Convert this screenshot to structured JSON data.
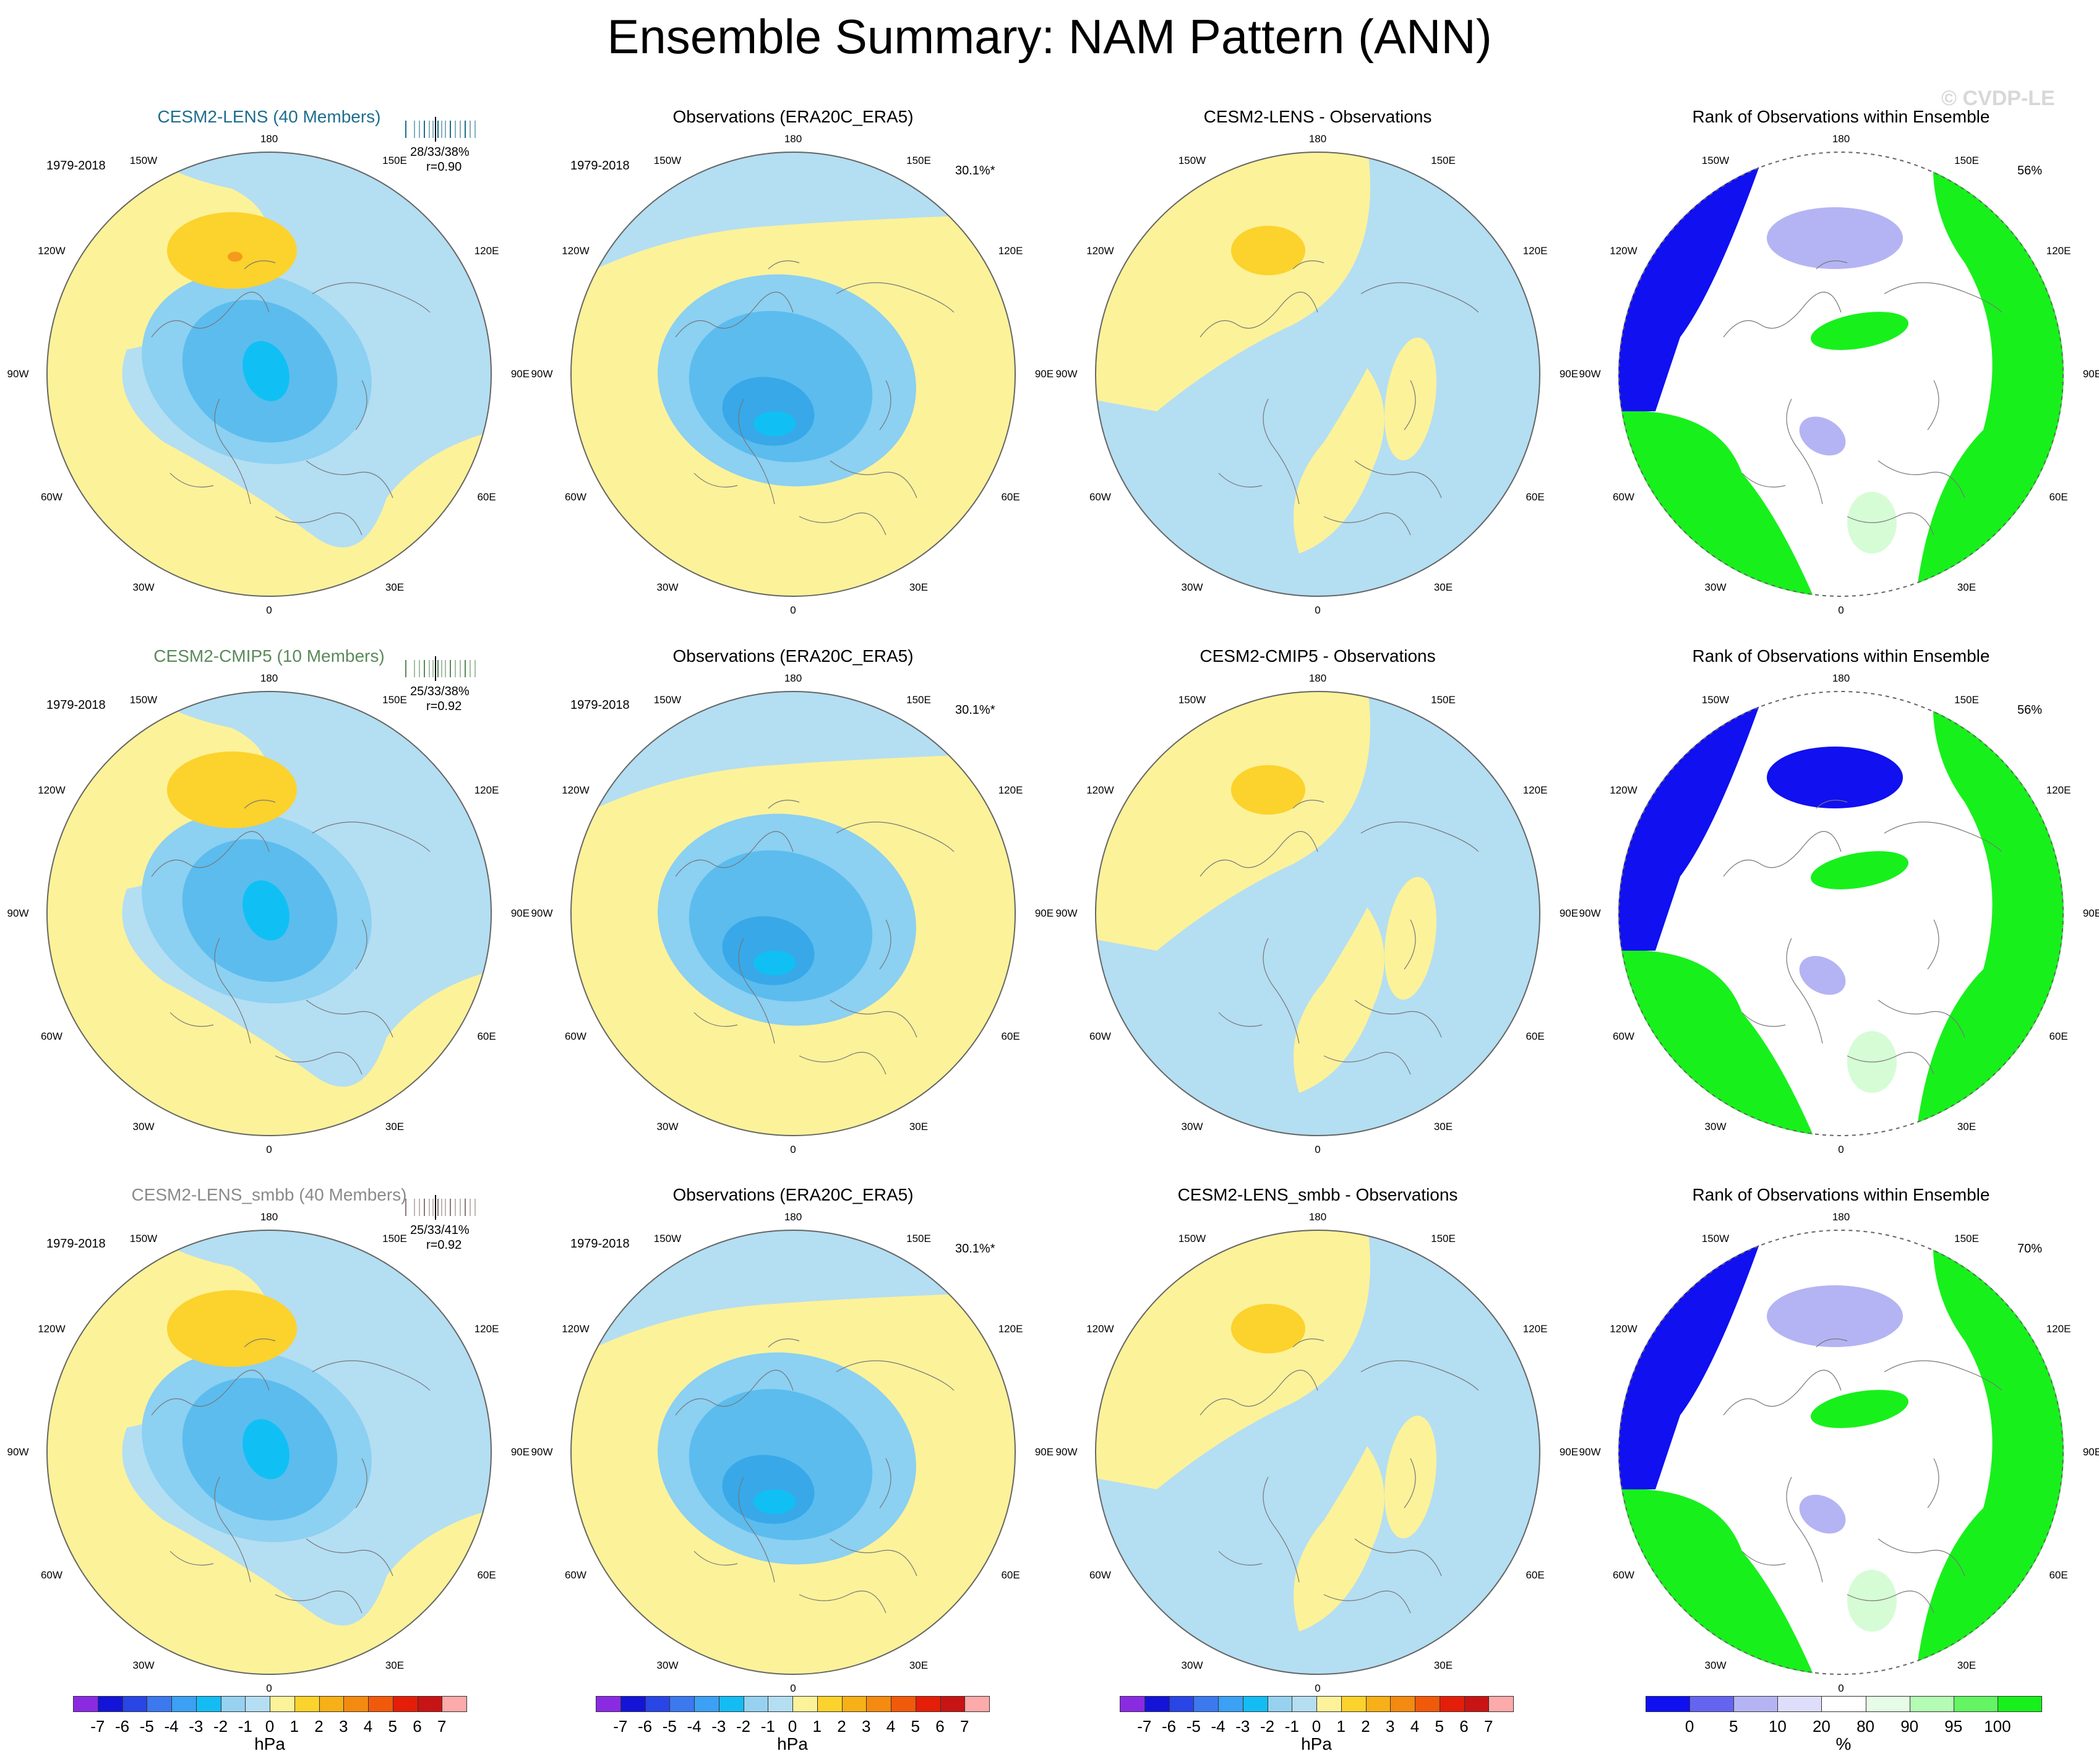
{
  "title": "Ensemble Summary: NAM Pattern (ANN)",
  "watermark": "© CVDP-LE",
  "lon_labels": [
    "180",
    "150E",
    "120E",
    "90E",
    "60E",
    "30E",
    "0",
    "30W",
    "60W",
    "90W",
    "120W",
    "150W"
  ],
  "colors": {
    "ocean_blue": "#b4def2",
    "land_yellow": "#fcf29a",
    "pos_orange": "#fcd22c",
    "pos_dark": "#f49a1c",
    "neg1": "#8cd0f2",
    "neg2": "#5cbcee",
    "neg3": "#38a8e8",
    "neg4": "#10c0f4",
    "rank_white": "#ffffff",
    "rank_green": "#18f01c",
    "rank_lightgreen": "#d6fcd6",
    "rank_blue": "#1010f0",
    "rank_lightblue": "#b4b4f4"
  },
  "rows": [
    {
      "model_title": "CESM2-LENS (40 Members)",
      "model_color": "#1e6e8e",
      "period": "1979-2018",
      "stats": "28/33/38%",
      "corr": "r=0.90",
      "obs_title": "Observations (ERA20C_ERA5)",
      "obs_period": "1979-2018",
      "obs_pct": "30.1%*",
      "diff_title": "CESM2-LENS - Observations",
      "rank_title": "Rank of Observations within Ensemble",
      "rank_pct": "56%",
      "rug_color": "#1e6e8e"
    },
    {
      "model_title": "CESM2-CMIP5 (10 Members)",
      "model_color": "#5a8a5a",
      "period": "1979-2018",
      "stats": "25/33/38%",
      "corr": "r=0.92",
      "obs_title": "Observations (ERA20C_ERA5)",
      "obs_period": "1979-2018",
      "obs_pct": "30.1%*",
      "diff_title": "CESM2-CMIP5 - Observations",
      "rank_title": "Rank of Observations within Ensemble",
      "rank_pct": "56%",
      "rug_color": "#5a8a5a"
    },
    {
      "model_title": "CESM2-LENS_smbb (40 Members)",
      "model_color": "#8a8a8a",
      "period": "1979-2018",
      "stats": "25/33/41%",
      "corr": "r=0.92",
      "obs_title": "Observations (ERA20C_ERA5)",
      "obs_period": "1979-2018",
      "obs_pct": "30.1%*",
      "diff_title": "CESM2-LENS_smbb - Observations",
      "rank_title": "Rank of Observations within Ensemble",
      "rank_pct": "70%",
      "rug_color": "#8a7a7a"
    }
  ],
  "chart_data": [
    {
      "type": "colorbar",
      "unit": "hPa",
      "levels": [
        -7,
        -6,
        -5,
        -4,
        -3,
        -2,
        -1,
        0,
        1,
        2,
        3,
        4,
        5,
        6,
        7
      ],
      "tick_labels": [
        "-7",
        "-6",
        "-5",
        "-4",
        "-3",
        "-2",
        "-1",
        "0",
        "1",
        "2",
        "3",
        "4",
        "5",
        "6",
        "7"
      ],
      "colors": [
        "#8a2be2",
        "#1414d8",
        "#2846e6",
        "#3c78ee",
        "#3ca0f4",
        "#14bcf4",
        "#96d2f0",
        "#b4def2",
        "#fcf29a",
        "#fcd22c",
        "#f8b018",
        "#f48a10",
        "#f05a0a",
        "#e41e08",
        "#c81414",
        "#fcaaaa"
      ]
    },
    {
      "type": "colorbar",
      "unit": "%",
      "levels": [
        0,
        5,
        10,
        20,
        80,
        90,
        95,
        100
      ],
      "tick_labels": [
        "0",
        "5",
        "10",
        "20",
        "80",
        "90",
        "95",
        "100"
      ],
      "colors": [
        "#1010f0",
        "#6464f0",
        "#b4b4f4",
        "#dedefa",
        "#ffffff",
        "#e6fce6",
        "#b4fcb4",
        "#64f464",
        "#18f01c"
      ]
    }
  ]
}
